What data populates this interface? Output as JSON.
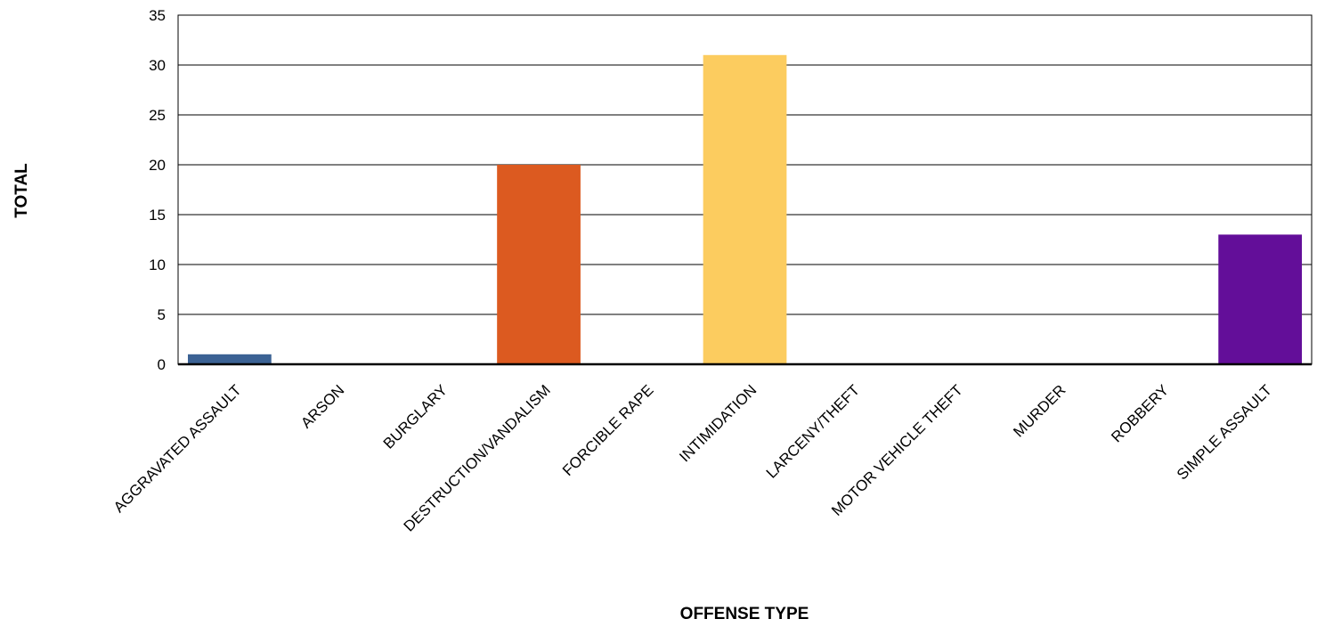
{
  "chart_data": {
    "type": "bar",
    "xlabel": "OFFENSE TYPE",
    "ylabel": "TOTAL",
    "ylim": [
      0,
      35
    ],
    "yticks": [
      0,
      5,
      10,
      15,
      20,
      25,
      30,
      35
    ],
    "grid": true,
    "categories": [
      "AGGRAVATED ASSAULT",
      "ARSON",
      "BURGLARY",
      "DESTRUCTION/VANDALISM",
      "FORCIBLE RAPE",
      "INTIMIDATION",
      "LARCENY/THEFT",
      "MOTOR VEHICLE THEFT",
      "MURDER",
      "ROBBERY",
      "SIMPLE ASSAULT"
    ],
    "values": [
      1,
      0,
      0,
      20,
      0,
      31,
      0,
      0,
      0,
      0,
      13
    ],
    "colors": [
      "#3b6294",
      "#3b6294",
      "#3b6294",
      "#dc5a20",
      "#dc5a20",
      "#fccc5f",
      "#fccc5f",
      "#fccc5f",
      "#fccc5f",
      "#fccc5f",
      "#630e99"
    ]
  }
}
